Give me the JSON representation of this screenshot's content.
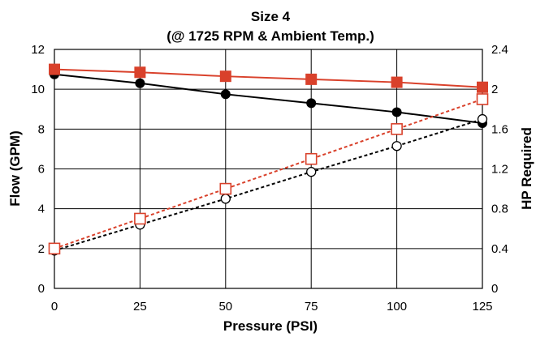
{
  "chart_data": {
    "type": "line",
    "title": "Size 4",
    "subtitle": "(@ 1725 RPM & Ambient Temp.)",
    "xlabel": "Pressure (PSI)",
    "ylabel_left": "Flow (GPM)",
    "ylabel_right": "HP Required",
    "x": [
      0,
      25,
      50,
      75,
      100,
      125
    ],
    "xlim": [
      0,
      125
    ],
    "x_ticks": [
      0,
      25,
      50,
      75,
      100,
      125
    ],
    "ylim_left": [
      0,
      12
    ],
    "y_ticks_left": [
      0,
      2,
      4,
      6,
      8,
      10,
      12
    ],
    "ylim_right": [
      0,
      2.4
    ],
    "y_ticks_right": [
      "0",
      "0.4",
      "0.8",
      "1.2",
      "1.6",
      "2",
      "2.4"
    ],
    "grid": true,
    "legend": "none",
    "series": [
      {
        "axis": "left",
        "color": "#000000",
        "marker": "filled-circle",
        "line": "solid",
        "values": [
          10.75,
          10.3,
          9.75,
          9.3,
          8.85,
          8.3
        ]
      },
      {
        "axis": "left",
        "color": "#d9412b",
        "marker": "filled-square",
        "line": "solid",
        "values": [
          11.0,
          10.85,
          10.65,
          10.5,
          10.35,
          10.1
        ]
      },
      {
        "axis": "right",
        "color": "#000000",
        "marker": "open-circle",
        "line": "dashed",
        "values": [
          0.38,
          0.64,
          0.9,
          1.17,
          1.43,
          1.7
        ]
      },
      {
        "axis": "right",
        "color": "#d9412b",
        "marker": "open-square",
        "line": "dashed",
        "values": [
          0.4,
          0.7,
          1.0,
          1.3,
          1.6,
          1.9
        ]
      }
    ]
  }
}
